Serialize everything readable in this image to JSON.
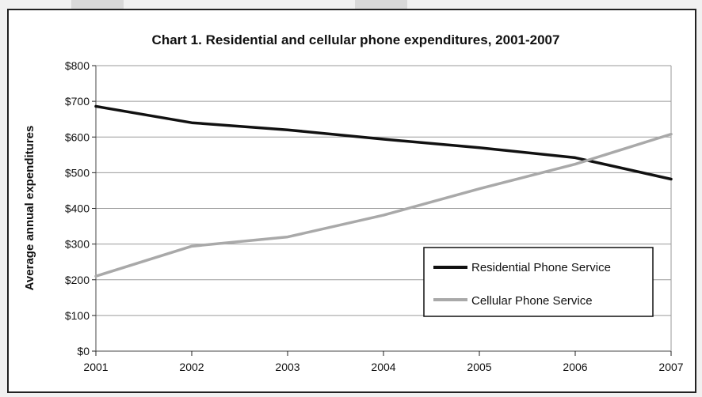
{
  "chart_data": {
    "type": "line",
    "title": "Chart 1. Residential and cellular phone expenditures, 2001-2007",
    "xlabel": "",
    "ylabel": "Average annual expenditures",
    "x": [
      "2001",
      "2002",
      "2003",
      "2004",
      "2005",
      "2006",
      "2007"
    ],
    "y_ticks": [
      "$0",
      "$100",
      "$200",
      "$300",
      "$400",
      "$500",
      "$600",
      "$700",
      "$800"
    ],
    "ylim": [
      0,
      800
    ],
    "grid": true,
    "legend_position": "bottom-right",
    "series": [
      {
        "name": "Residential Phone Service",
        "values": [
          686,
          640,
          620,
          594,
          570,
          542,
          482
        ],
        "color": "#111111"
      },
      {
        "name": "Cellular Phone Service",
        "values": [
          210,
          294,
          320,
          381,
          455,
          524,
          608
        ],
        "color": "#a9a9a9"
      }
    ]
  }
}
